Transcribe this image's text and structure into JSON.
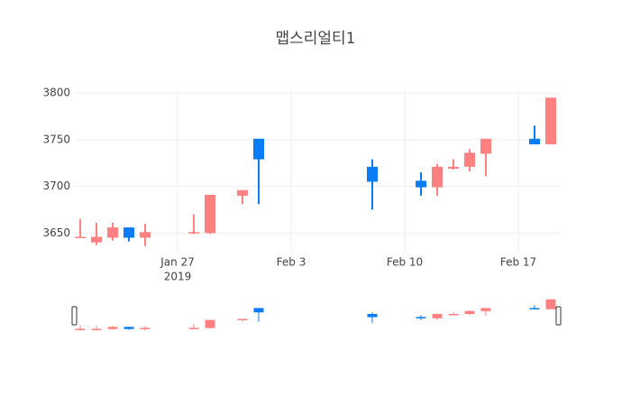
{
  "chart_data": {
    "type": "candlestick",
    "title": "맵스리얼티1",
    "x": [
      "2019-01-21",
      "2019-01-22",
      "2019-01-23",
      "2019-01-24",
      "2019-01-25",
      "2019-01-28",
      "2019-01-29",
      "2019-01-31",
      "2019-02-01",
      "2019-02-08",
      "2019-02-11",
      "2019-02-12",
      "2019-02-13",
      "2019-02-14",
      "2019-02-15",
      "2019-02-18",
      "2019-02-19"
    ],
    "open": [
      3645,
      3640,
      3645,
      3656,
      3645,
      3650,
      3650,
      3690,
      3751,
      3721,
      3706,
      3699,
      3719,
      3721,
      3735,
      3751,
      3745
    ],
    "high": [
      3665,
      3661,
      3661,
      3656,
      3660,
      3670,
      3691,
      3696,
      3751,
      3729,
      3715,
      3724,
      3729,
      3740,
      3751,
      3765,
      3795
    ],
    "low": [
      3645,
      3637,
      3642,
      3641,
      3636,
      3649,
      3649,
      3681,
      3681,
      3675,
      3690,
      3690,
      3718,
      3716,
      3711,
      3745,
      3745
    ],
    "close": [
      3646,
      3646,
      3656,
      3645,
      3651,
      3651,
      3691,
      3696,
      3729,
      3705,
      3699,
      3721,
      3721,
      3736,
      3751,
      3745,
      3795
    ],
    "increasing_color": "#ff8080",
    "decreasing_color": "#0a7cf5",
    "xlim": [
      "2019-01-20T16:00",
      "2019-02-19T12:00"
    ],
    "xticks": [
      {
        "value": "2019-01-27",
        "label": "Jan 27"
      },
      {
        "value": "2019-02-03",
        "label": "Feb 3"
      },
      {
        "value": "2019-02-10",
        "label": "Feb 10"
      },
      {
        "value": "2019-02-17",
        "label": "Feb 17"
      }
    ],
    "x_year_label": "2019",
    "ylim": [
      3630,
      3803
    ],
    "yticks": [
      3650,
      3700,
      3750,
      3800
    ],
    "grid": true,
    "range_slider": true
  }
}
